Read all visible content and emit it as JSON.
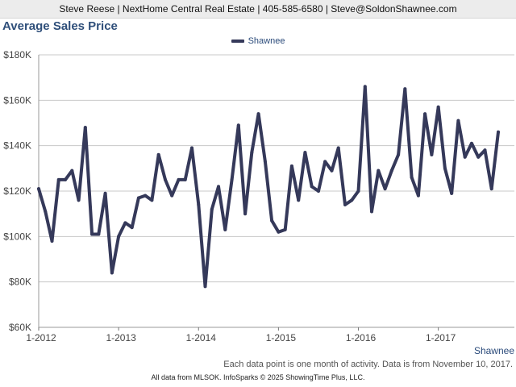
{
  "header": {
    "contact": "Steve Reese | NextHome Central Real Estate | 405-585-6580 | Steve@SoldonShawnee.com"
  },
  "footnote": "Each data point is one month of activity. Data is from November 10, 2017.",
  "footer": "All data from MLSOK. InfoSparks © 2025 ShowingTime Plus, LLC.",
  "colors": {
    "line": "#35395a",
    "grid": "#cccccc",
    "title": "#2f4f7a",
    "header_bg": "#ececec"
  },
  "chart_data": {
    "type": "line",
    "title": "Average Sales Price",
    "xlabel": "",
    "ylabel": "",
    "ylim": [
      60000,
      180000
    ],
    "yticks": [
      {
        "value": 60000,
        "label": "$60K"
      },
      {
        "value": 80000,
        "label": "$80K"
      },
      {
        "value": 100000,
        "label": "$100K"
      },
      {
        "value": 120000,
        "label": "$120K"
      },
      {
        "value": 140000,
        "label": "$140K"
      },
      {
        "value": 160000,
        "label": "$160K"
      },
      {
        "value": 180000,
        "label": "$180K"
      }
    ],
    "xlim": [
      "2012-01",
      "2017-10"
    ],
    "xticks": [
      {
        "value": "2012-01",
        "label": "1-2012"
      },
      {
        "value": "2013-01",
        "label": "1-2013"
      },
      {
        "value": "2014-01",
        "label": "1-2014"
      },
      {
        "value": "2015-01",
        "label": "1-2015"
      },
      {
        "value": "2016-01",
        "label": "1-2016"
      },
      {
        "value": "2017-01",
        "label": "1-2017"
      }
    ],
    "grid": true,
    "legend": "top-center",
    "x": [
      "2012-01",
      "2012-02",
      "2012-03",
      "2012-04",
      "2012-05",
      "2012-06",
      "2012-07",
      "2012-08",
      "2012-09",
      "2012-10",
      "2012-11",
      "2012-12",
      "2013-01",
      "2013-02",
      "2013-03",
      "2013-04",
      "2013-05",
      "2013-06",
      "2013-07",
      "2013-08",
      "2013-09",
      "2013-10",
      "2013-11",
      "2013-12",
      "2014-01",
      "2014-02",
      "2014-03",
      "2014-04",
      "2014-05",
      "2014-06",
      "2014-07",
      "2014-08",
      "2014-09",
      "2014-10",
      "2014-11",
      "2014-12",
      "2015-01",
      "2015-02",
      "2015-03",
      "2015-04",
      "2015-05",
      "2015-06",
      "2015-07",
      "2015-08",
      "2015-09",
      "2015-10",
      "2015-11",
      "2015-12",
      "2016-01",
      "2016-02",
      "2016-03",
      "2016-04",
      "2016-05",
      "2016-06",
      "2016-07",
      "2016-08",
      "2016-09",
      "2016-10",
      "2016-11",
      "2016-12",
      "2017-01",
      "2017-02",
      "2017-03",
      "2017-04",
      "2017-05",
      "2017-06",
      "2017-07",
      "2017-08",
      "2017-09",
      "2017-10"
    ],
    "series": [
      {
        "name": "Shawnee",
        "values": [
          121000,
          111000,
          98000,
          125000,
          125000,
          129000,
          116000,
          148000,
          101000,
          101000,
          119000,
          84000,
          100000,
          106000,
          104000,
          117000,
          118000,
          116000,
          136000,
          125000,
          118000,
          125000,
          125000,
          139000,
          114000,
          78000,
          112000,
          122000,
          103000,
          125000,
          149000,
          110000,
          137000,
          154000,
          133000,
          107000,
          102000,
          103000,
          131000,
          116000,
          137000,
          122000,
          120000,
          133000,
          129000,
          139000,
          114000,
          116000,
          120000,
          166000,
          111000,
          129000,
          121000,
          129000,
          136000,
          165000,
          126000,
          118000,
          154000,
          136000,
          157000,
          130000,
          119000,
          151000,
          135000,
          141000,
          135000,
          138000,
          121000,
          146000
        ]
      }
    ]
  }
}
